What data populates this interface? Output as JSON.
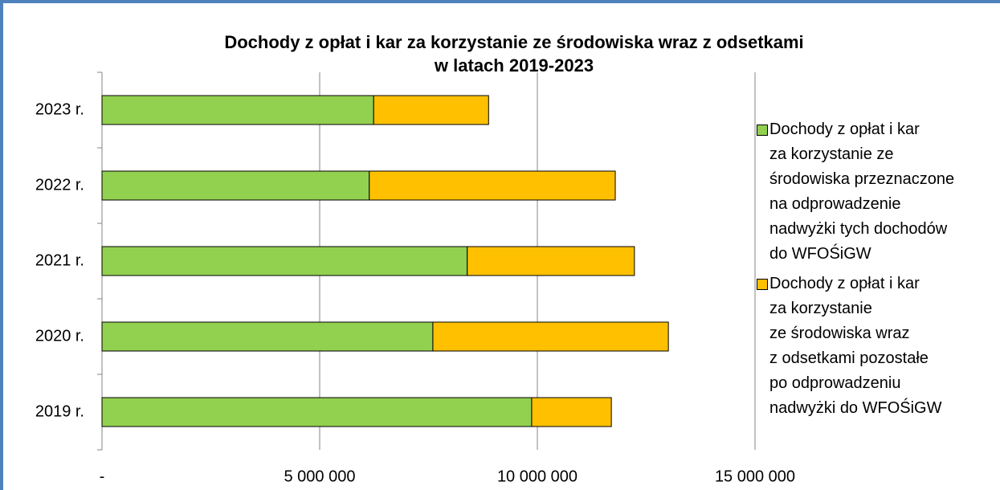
{
  "chart_data": {
    "type": "bar",
    "orientation": "horizontal",
    "stacked": true,
    "title": "Dochody z opłat i kar za korzystanie ze środowiska wraz z odsetkami\nw latach 2019-2023",
    "categories": [
      "2019 r.",
      "2020 r.",
      "2021 r.",
      "2022 r.",
      "2023 r."
    ],
    "series": [
      {
        "name": "Dochody z opłat i kar\nza korzystanie ze\nśrodowiska przeznaczone\nna odprowadzenie\nnadwyżki tych dochodów\ndo WFOŚiGW",
        "color": "#92d050",
        "values": [
          9870000,
          7600000,
          8390000,
          6140000,
          6240000
        ]
      },
      {
        "name": "Dochody z opłat i kar\nza korzystanie\nze środowiska wraz\nz odsetkami pozostałe\npo odprowadzeniu\nnadwyżki do WFOŚiGW",
        "color": "#ffc000",
        "values": [
          1830000,
          5410000,
          3840000,
          5650000,
          2640000
        ]
      }
    ],
    "xlim": [
      0,
      15000000
    ],
    "xticks": [
      {
        "value": 0,
        "label": "-"
      },
      {
        "value": 5000000,
        "label": "5 000 000"
      },
      {
        "value": 10000000,
        "label": "10 000 000"
      },
      {
        "value": 15000000,
        "label": "15 000 000"
      }
    ],
    "grid": true,
    "legend": "right"
  }
}
